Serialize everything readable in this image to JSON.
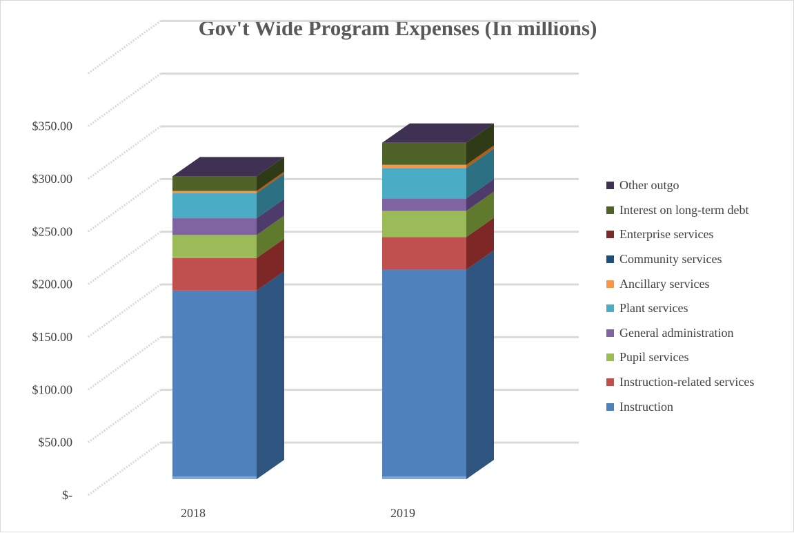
{
  "chart_data": {
    "type": "bar",
    "stacked": true,
    "three_d": true,
    "title": "Gov't Wide Program Expenses (In millions)",
    "xlabel": "",
    "ylabel": "",
    "categories": [
      "2018",
      "2019"
    ],
    "y_ticks": [
      {
        "value": 0,
        "label": "$-"
      },
      {
        "value": 50,
        "label": "$50.00"
      },
      {
        "value": 100,
        "label": "$100.00"
      },
      {
        "value": 150,
        "label": "$150.00"
      },
      {
        "value": 200,
        "label": "$200.00"
      },
      {
        "value": 250,
        "label": "$250.00"
      },
      {
        "value": 300,
        "label": "$300.00"
      },
      {
        "value": 350,
        "label": "$350.00"
      }
    ],
    "ylim": [
      0,
      400
    ],
    "grid": true,
    "legend_position": "right",
    "series": [
      {
        "name": "Instruction",
        "values": [
          180,
          200
        ],
        "color": "#4f81bd",
        "side": "#2e5580",
        "top": "#7da5d8"
      },
      {
        "name": "Instruction-related services",
        "values": [
          31,
          31
        ],
        "color": "#c0504d",
        "side": "#7d2826",
        "top": "#d9837f"
      },
      {
        "name": "Pupil services",
        "values": [
          22,
          25
        ],
        "color": "#9bbb59",
        "side": "#5f7a2c",
        "top": "#bcd68a"
      },
      {
        "name": "General administration",
        "values": [
          16,
          12
        ],
        "color": "#8064a2",
        "side": "#4f3b6b",
        "top": "#a98ec8"
      },
      {
        "name": "Plant services",
        "values": [
          24,
          29
        ],
        "color": "#4bacc6",
        "side": "#2c7083",
        "top": "#7fcade"
      },
      {
        "name": "Ancillary services",
        "values": [
          2,
          3
        ],
        "color": "#f79646",
        "side": "#b35c16",
        "top": "#fab87f"
      },
      {
        "name": "Community services",
        "values": [
          0,
          0
        ],
        "color": "#1f4e79",
        "side": "#15375a",
        "top": "#3f6a93"
      },
      {
        "name": "Enterprise services",
        "values": [
          0,
          0
        ],
        "color": "#7b2a2a",
        "side": "#531b1b",
        "top": "#9a4646"
      },
      {
        "name": "Interest on long-term debt",
        "values": [
          14,
          21
        ],
        "color": "#4f6228",
        "side": "#2f3b17",
        "top": "#6d8540"
      },
      {
        "name": "Other outgo",
        "values": [
          0,
          0
        ],
        "color": "#3f3151",
        "side": "#2b2138",
        "top": "#3f3151"
      }
    ]
  }
}
